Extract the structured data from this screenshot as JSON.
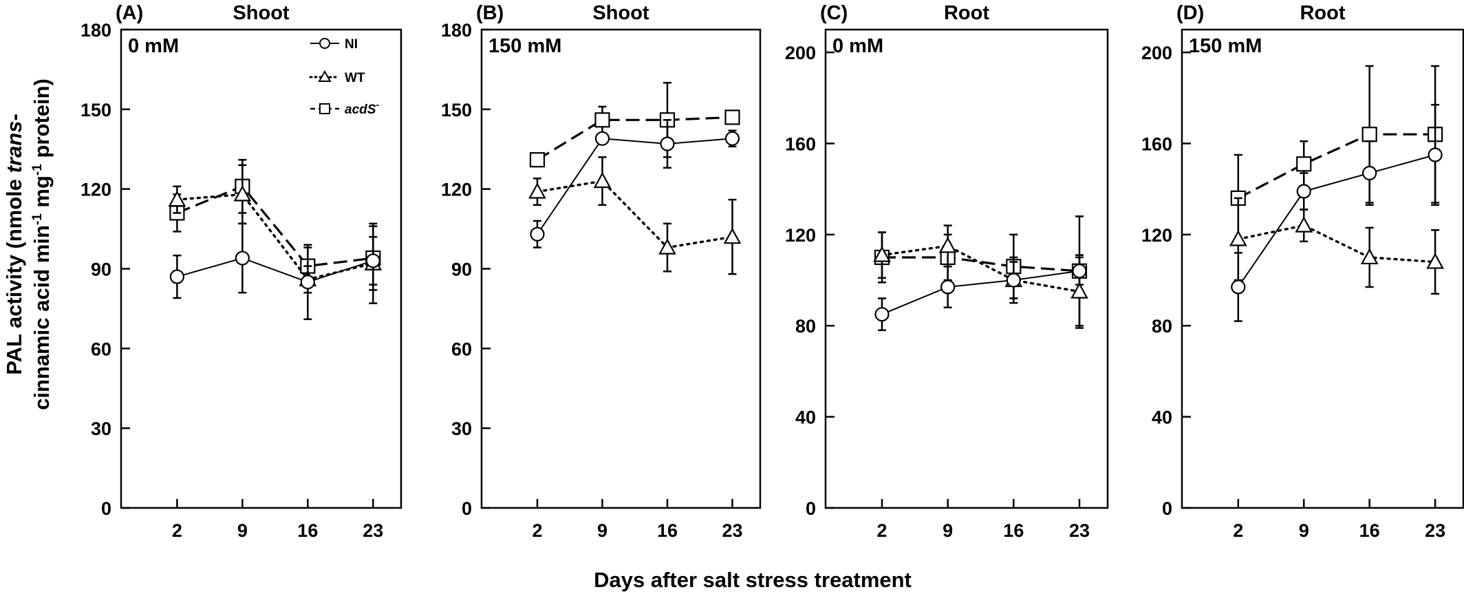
{
  "figure": {
    "ylabel_line1_pre": "PAL activity (nmole ",
    "ylabel_line1_italic": "trans",
    "ylabel_line1_post": "-",
    "ylabel_line2_a": "cinnamic acid min",
    "ylabel_line2_sup1": "-1",
    "ylabel_line2_b": " mg",
    "ylabel_line2_sup2": "-1",
    "ylabel_line2_c": " protein)",
    "xlabel": "Days after salt stress treatment"
  },
  "legend": {
    "entries": [
      {
        "key": "NI",
        "label": "NI",
        "italic": false,
        "sup": ""
      },
      {
        "key": "WT",
        "label": "WT",
        "italic": false,
        "sup": ""
      },
      {
        "key": "acdS",
        "label": "acdS",
        "italic": true,
        "sup": "-"
      }
    ]
  },
  "styles": {
    "NI": {
      "marker": "circle",
      "dash": "solid"
    },
    "WT": {
      "marker": "triangle",
      "dash": "dotted"
    },
    "acdS": {
      "marker": "square",
      "dash": "dashed"
    },
    "line_color": "#000000"
  },
  "chart_data": [
    {
      "type": "line",
      "panel": "(A)",
      "title": "Shoot",
      "condition": "0 mM",
      "x": [
        2,
        9,
        16,
        23
      ],
      "xticks": [
        "2",
        "9",
        "16",
        "23"
      ],
      "ylim": [
        0,
        180
      ],
      "yticks": [
        0,
        30,
        60,
        90,
        120,
        150,
        180
      ],
      "series": [
        {
          "name": "NI",
          "values": [
            87,
            94,
            85,
            93
          ],
          "errors": [
            8,
            13,
            14,
            9
          ]
        },
        {
          "name": "WT",
          "values": [
            116,
            118,
            86,
            92
          ],
          "errors": [
            5,
            11,
            5,
            15
          ]
        },
        {
          "name": "acdS",
          "values": [
            111,
            121,
            91,
            94
          ],
          "errors": [
            7,
            10,
            7,
            12
          ]
        }
      ]
    },
    {
      "type": "line",
      "panel": "(B)",
      "title": "Shoot",
      "condition": "150 mM",
      "x": [
        2,
        9,
        16,
        23
      ],
      "xticks": [
        "2",
        "9",
        "16",
        "23"
      ],
      "ylim": [
        0,
        180
      ],
      "yticks": [
        0,
        30,
        60,
        90,
        120,
        150,
        180
      ],
      "series": [
        {
          "name": "NI",
          "values": [
            103,
            139,
            137,
            139
          ],
          "errors": [
            5,
            2,
            9,
            3
          ]
        },
        {
          "name": "WT",
          "values": [
            119,
            123,
            98,
            102
          ],
          "errors": [
            5,
            9,
            9,
            14
          ]
        },
        {
          "name": "acdS",
          "values": [
            131,
            146,
            146,
            147
          ],
          "errors": [
            2,
            5,
            14,
            2
          ]
        }
      ]
    },
    {
      "type": "line",
      "panel": "(C)",
      "title": "Root",
      "condition": "0 mM",
      "x": [
        2,
        9,
        16,
        23
      ],
      "xticks": [
        "2",
        "9",
        "16",
        "23"
      ],
      "ylim": [
        0,
        210
      ],
      "yticks": [
        0,
        40,
        80,
        120,
        160,
        200
      ],
      "series": [
        {
          "name": "NI",
          "values": [
            85,
            97,
            100,
            104
          ],
          "errors": [
            7,
            9,
            8,
            6
          ]
        },
        {
          "name": "WT",
          "values": [
            111,
            115,
            100,
            95
          ],
          "errors": [
            10,
            9,
            10,
            16
          ]
        },
        {
          "name": "acdS",
          "values": [
            110,
            110,
            106,
            104
          ],
          "errors": [
            11,
            10,
            14,
            24
          ]
        }
      ]
    },
    {
      "type": "line",
      "panel": "(D)",
      "title": "Root",
      "condition": "150 mM",
      "x": [
        2,
        9,
        16,
        23
      ],
      "xticks": [
        "2",
        "9",
        "16",
        "23"
      ],
      "ylim": [
        0,
        210
      ],
      "yticks": [
        0,
        40,
        80,
        120,
        160,
        200
      ],
      "series": [
        {
          "name": "NI",
          "values": [
            97,
            139,
            147,
            155
          ],
          "errors": [
            15,
            8,
            14,
            22
          ]
        },
        {
          "name": "WT",
          "values": [
            118,
            124,
            110,
            108
          ],
          "errors": [
            18,
            7,
            13,
            14
          ]
        },
        {
          "name": "acdS",
          "values": [
            136,
            151,
            164,
            164
          ],
          "errors": [
            19,
            10,
            30,
            30
          ]
        }
      ]
    }
  ]
}
